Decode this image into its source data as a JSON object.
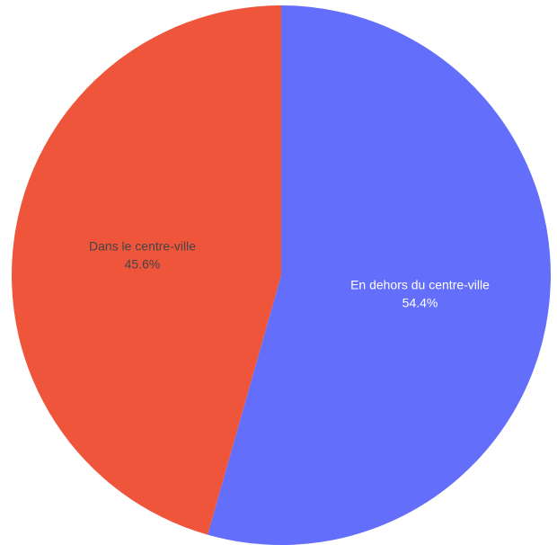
{
  "chart_data": {
    "type": "pie",
    "slices": [
      {
        "label": "En dehors du centre-ville",
        "value": 54.4,
        "value_label": "54.4%",
        "color": "#636efa",
        "text_color": "#ffffff"
      },
      {
        "label": "Dans le centre-ville",
        "value": 45.6,
        "value_label": "45.6%",
        "color": "#ef553b",
        "text_color": "#444444"
      }
    ],
    "direction": "clockwise",
    "start_angle": "12 o'clock",
    "legend": "none"
  }
}
